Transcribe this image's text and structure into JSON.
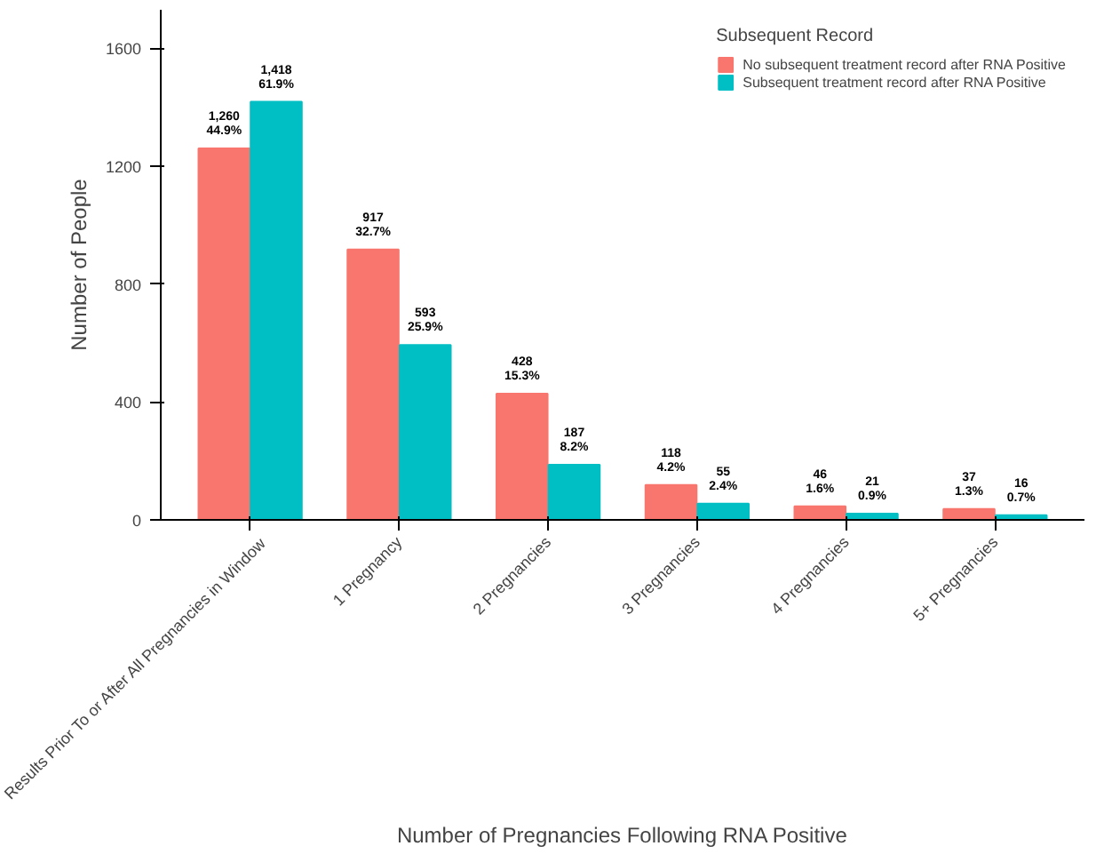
{
  "chart_data": {
    "type": "bar",
    "xlabel": "Number of Pregnancies Following RNA Positive",
    "ylabel": "Number of People",
    "legend_title": "Subsequent Record",
    "categories": [
      "Results Prior To or After All Pregnancies in Window",
      "1 Pregnancy",
      "2 Pregnancies",
      "3 Pregnancies",
      "4 Pregnancies",
      "5+ Pregnancies"
    ],
    "series": [
      {
        "name": "No subsequent treatment record after RNA Positive",
        "color": "#f8766d",
        "values": [
          1260,
          917,
          428,
          118,
          46,
          37
        ],
        "value_labels": [
          "1,260\n44.9%",
          "917\n32.7%",
          "428\n15.3%",
          "118\n4.2%",
          "46\n1.6%",
          "37\n1.3%"
        ]
      },
      {
        "name": "Subsequent treatment record after RNA Positive",
        "color": "#00bfc4",
        "values": [
          1418,
          593,
          187,
          55,
          21,
          16
        ],
        "value_labels": [
          "1,418\n61.9%",
          "593\n25.9%",
          "187\n8.2%",
          "55\n2.4%",
          "21\n0.9%",
          "16\n0.7%"
        ]
      }
    ],
    "ylim": [
      0,
      1730
    ],
    "yticks": [
      0,
      400,
      800,
      1200,
      1600
    ],
    "grid": false,
    "legend": "top right"
  }
}
